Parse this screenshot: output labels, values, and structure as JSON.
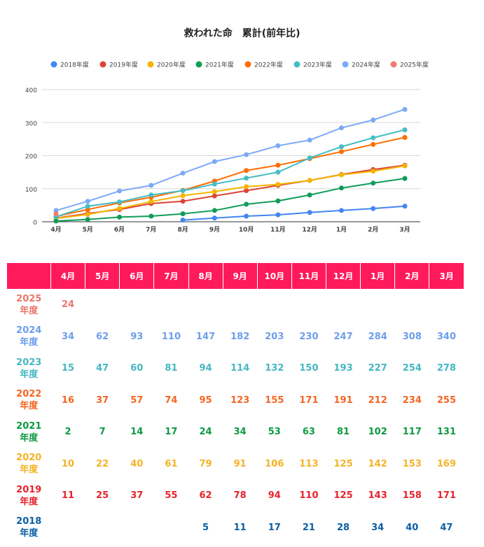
{
  "title": "救われた命　累計(前年比)",
  "chart_data": {
    "type": "line",
    "title": "救われた命　累計(前年比)",
    "categories": [
      "4月",
      "5月",
      "6月",
      "7月",
      "8月",
      "9月",
      "10月",
      "11月",
      "12月",
      "1月",
      "2月",
      "3月"
    ],
    "ylim": [
      0,
      400
    ],
    "yticks": [
      0,
      100,
      200,
      300,
      400
    ],
    "grid": true,
    "legend_position": "top",
    "series": [
      {
        "name": "2018年度",
        "color": "#4285f4",
        "values": [
          null,
          null,
          null,
          null,
          5,
          11,
          17,
          21,
          28,
          34,
          40,
          47
        ]
      },
      {
        "name": "2019年度",
        "color": "#db4437",
        "values": [
          11,
          25,
          37,
          55,
          62,
          78,
          94,
          110,
          125,
          143,
          158,
          171
        ]
      },
      {
        "name": "2020年度",
        "color": "#f4b400",
        "values": [
          10,
          22,
          40,
          61,
          79,
          91,
          106,
          113,
          125,
          142,
          153,
          169
        ]
      },
      {
        "name": "2021年度",
        "color": "#0f9d58",
        "values": [
          2,
          7,
          14,
          17,
          24,
          34,
          53,
          63,
          81,
          102,
          117,
          131
        ]
      },
      {
        "name": "2022年度",
        "color": "#ff6d01",
        "values": [
          16,
          37,
          57,
          74,
          95,
          123,
          155,
          171,
          191,
          212,
          234,
          255
        ]
      },
      {
        "name": "2023年度",
        "color": "#46bdc6",
        "values": [
          15,
          47,
          60,
          81,
          94,
          114,
          132,
          150,
          193,
          227,
          254,
          278
        ]
      },
      {
        "name": "2024年度",
        "color": "#7baaf7",
        "values": [
          34,
          62,
          93,
          110,
          147,
          182,
          203,
          230,
          247,
          284,
          308,
          340
        ]
      },
      {
        "name": "2025年度",
        "color": "#f07b72",
        "values": [
          24,
          null,
          null,
          null,
          null,
          null,
          null,
          null,
          null,
          null,
          null,
          null
        ]
      }
    ]
  },
  "table": {
    "header": [
      "4月",
      "5月",
      "6月",
      "7月",
      "8月",
      "9月",
      "10月",
      "11月",
      "12月",
      "1月",
      "2月",
      "3月"
    ],
    "rows": [
      {
        "year": "2025",
        "suffix": "年度",
        "color": "#ea776d",
        "values": [
          "24",
          "",
          "",
          "",
          "",
          "",
          "",
          "",
          "",
          "",
          "",
          ""
        ]
      },
      {
        "year": "2024",
        "suffix": "年度",
        "color": "#6d9eeb",
        "values": [
          "34",
          "62",
          "93",
          "110",
          "147",
          "182",
          "203",
          "230",
          "247",
          "284",
          "308",
          "340"
        ]
      },
      {
        "year": "2023",
        "suffix": "年度",
        "color": "#45b7c2",
        "values": [
          "15",
          "47",
          "60",
          "81",
          "94",
          "114",
          "132",
          "150",
          "193",
          "227",
          "254",
          "278"
        ]
      },
      {
        "year": "2022",
        "suffix": "年度",
        "color": "#f26522",
        "values": [
          "16",
          "37",
          "57",
          "74",
          "95",
          "123",
          "155",
          "171",
          "191",
          "212",
          "234",
          "255"
        ]
      },
      {
        "year": "2021",
        "suffix": "年度",
        "color": "#0c9a41",
        "values": [
          "2",
          "7",
          "14",
          "17",
          "24",
          "34",
          "53",
          "63",
          "81",
          "102",
          "117",
          "131"
        ]
      },
      {
        "year": "2020",
        "suffix": "年度",
        "color": "#f5b324",
        "values": [
          "10",
          "22",
          "40",
          "61",
          "79",
          "91",
          "106",
          "113",
          "125",
          "142",
          "153",
          "169"
        ]
      },
      {
        "year": "2019",
        "suffix": "年度",
        "color": "#e8222c",
        "values": [
          "11",
          "25",
          "37",
          "55",
          "62",
          "78",
          "94",
          "110",
          "125",
          "143",
          "158",
          "171"
        ]
      },
      {
        "year": "2018",
        "suffix": "年度",
        "color": "#0b5fa5",
        "values": [
          "",
          "",
          "",
          "",
          "5",
          "11",
          "17",
          "21",
          "28",
          "34",
          "40",
          "47"
        ]
      }
    ]
  }
}
